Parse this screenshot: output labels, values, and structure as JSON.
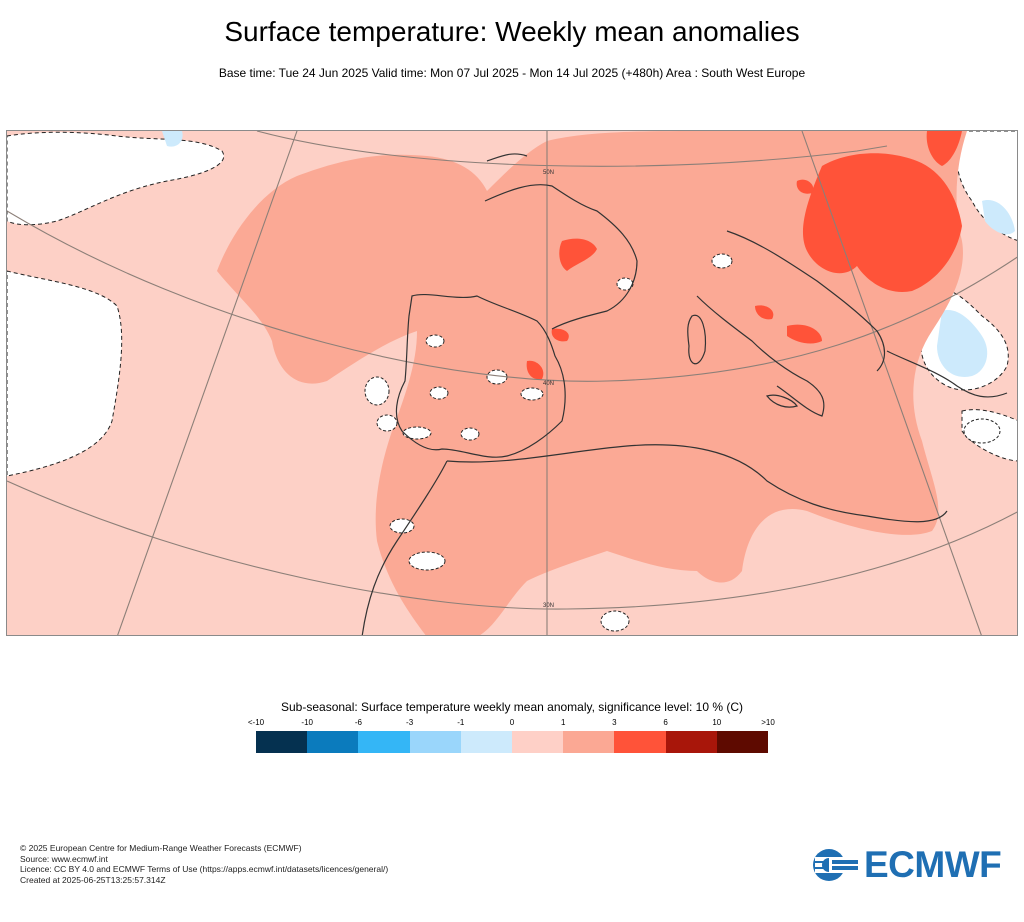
{
  "header": {
    "title": "Surface temperature: Weekly mean anomalies",
    "subtitle": "Base time: Tue 24 Jun 2025 Valid time: Mon 07 Jul 2025 - Mon 14 Jul 2025 (+480h) Area : South West Europe"
  },
  "map": {
    "lat_labels": [
      "50N",
      "40N",
      "30N"
    ],
    "colors": {
      "sea_base": "#fdd0c6",
      "land_warm": "#fba995",
      "hot": "#ff5339",
      "neutral": "#ffffff",
      "cool": "#cdeafc",
      "coast": "#333333",
      "grid": "#8c7f78"
    }
  },
  "legend": {
    "title": "Sub-seasonal: Surface temperature weekly mean anomaly, significance level: 10 % (C)",
    "tick_labels": [
      "<-10",
      "-10",
      "-6",
      "-3",
      "-1",
      "0",
      "1",
      "3",
      "6",
      "10",
      ">10"
    ],
    "colors": [
      "#053150",
      "#0b7bbd",
      "#34b6f6",
      "#9ad6fb",
      "#cdeafc",
      "#fed0c7",
      "#fba894",
      "#ff5339",
      "#a8160a",
      "#5e0a00"
    ]
  },
  "footer": {
    "line1": "© 2025 European Centre for Medium-Range Weather Forecasts (ECMWF)",
    "line2": "Source: www.ecmwf.int",
    "line3": "Licence: CC BY 4.0 and ECMWF Terms of Use (https://apps.ecmwf.int/datasets/licences/general/)",
    "line4": "Created at 2025-06-25T13:25:57.314Z"
  },
  "logo": {
    "text": "ECMWF"
  }
}
